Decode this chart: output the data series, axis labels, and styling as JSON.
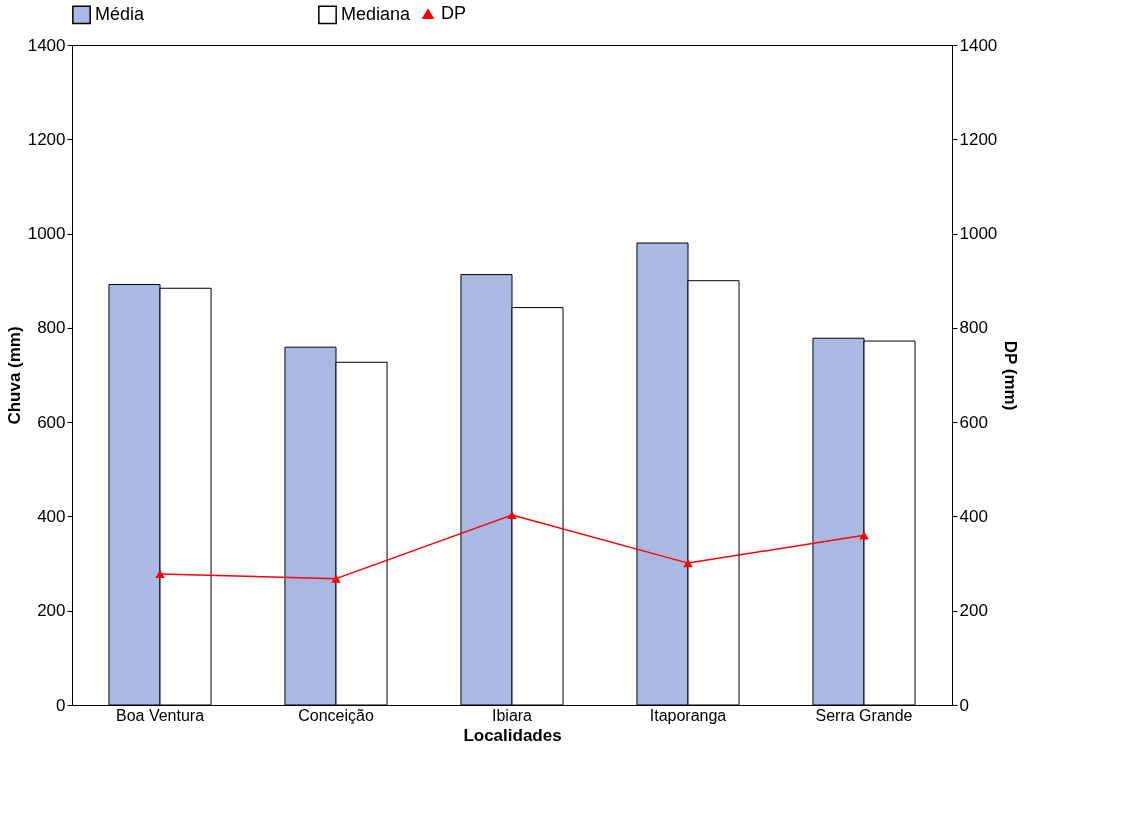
{
  "chart_data": {
    "type": "bar",
    "xlabel": "Localidades",
    "ylabel": "Chuva (mm)",
    "y2label": "DP (mm)",
    "categories": [
      "Boa Ventura",
      "Conceição",
      "Ibiara",
      "Itaporanga",
      "Serra Grande"
    ],
    "series": [
      {
        "name": "Média",
        "color": "#a9b9e2",
        "values": [
          892,
          759,
          913,
          980,
          778
        ]
      },
      {
        "name": "Mediana",
        "color": "#ffffff",
        "values": [
          884,
          727,
          843,
          900,
          772
        ]
      },
      {
        "name": "DP",
        "type": "line",
        "axis": "y2",
        "color": "#ff0000",
        "marker": "triangle",
        "values": [
          278,
          268,
          403,
          301,
          360
        ]
      }
    ],
    "ylim": [
      0,
      1400
    ],
    "yticks": [
      0,
      200,
      400,
      600,
      800,
      1000,
      1200,
      1400
    ],
    "y2lim": [
      0,
      1400
    ],
    "y2ticks": [
      0,
      200,
      400,
      600,
      800,
      1000,
      1200,
      1400
    ],
    "grid": false,
    "legend": "top"
  }
}
